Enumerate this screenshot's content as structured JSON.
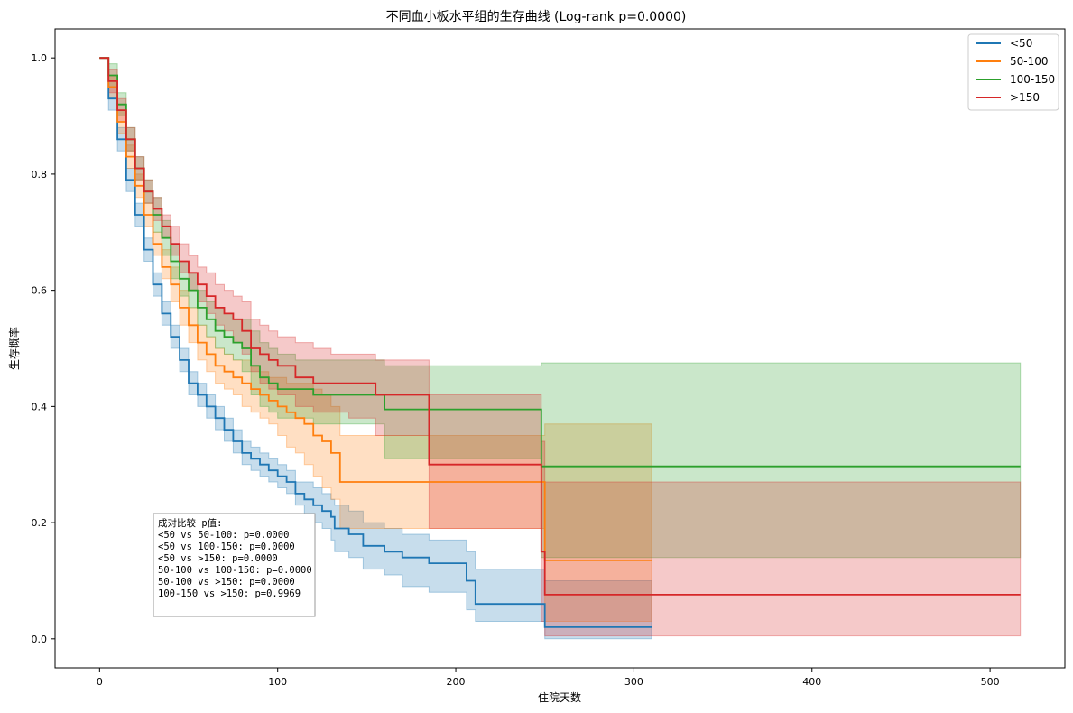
{
  "chart_data": {
    "type": "line",
    "title": "不同血小板水平组的生存曲线 (Log-rank p=0.0000)",
    "xlabel": "住院天数",
    "ylabel": "生存概率",
    "xlim": [
      -25,
      542
    ],
    "ylim": [
      -0.05,
      1.05
    ],
    "xticks": [
      0,
      100,
      200,
      300,
      400,
      500
    ],
    "yticks": [
      0.0,
      0.2,
      0.4,
      0.6,
      0.8,
      1.0
    ],
    "xtick_labels": [
      "0",
      "100",
      "200",
      "300",
      "400",
      "500"
    ],
    "ytick_labels": [
      "0.0",
      "0.2",
      "0.4",
      "0.6",
      "0.8",
      "1.0"
    ],
    "grid": false,
    "legend_position": "top-right",
    "step": true,
    "series": [
      {
        "name": "<50",
        "color": "#1f77b4",
        "x": [
          0,
          5,
          10,
          15,
          20,
          25,
          30,
          35,
          40,
          45,
          50,
          55,
          60,
          65,
          70,
          75,
          80,
          85,
          90,
          95,
          100,
          105,
          110,
          115,
          120,
          125,
          130,
          132,
          140,
          148,
          160,
          170,
          185,
          206,
          211,
          248,
          250,
          310
        ],
        "y": [
          1.0,
          0.93,
          0.86,
          0.79,
          0.73,
          0.67,
          0.61,
          0.56,
          0.52,
          0.48,
          0.44,
          0.42,
          0.4,
          0.38,
          0.36,
          0.34,
          0.32,
          0.31,
          0.3,
          0.29,
          0.28,
          0.27,
          0.25,
          0.24,
          0.23,
          0.22,
          0.21,
          0.19,
          0.18,
          0.16,
          0.15,
          0.14,
          0.13,
          0.1,
          0.06,
          0.06,
          0.02,
          0.02
        ],
        "ci_lower": [
          1.0,
          0.91,
          0.84,
          0.77,
          0.71,
          0.65,
          0.59,
          0.54,
          0.5,
          0.46,
          0.42,
          0.4,
          0.38,
          0.36,
          0.34,
          0.32,
          0.3,
          0.29,
          0.28,
          0.27,
          0.26,
          0.25,
          0.23,
          0.21,
          0.2,
          0.19,
          0.17,
          0.15,
          0.14,
          0.12,
          0.11,
          0.09,
          0.08,
          0.05,
          0.03,
          0.03,
          0.0,
          0.0
        ],
        "ci_upper": [
          1.0,
          0.95,
          0.88,
          0.81,
          0.75,
          0.69,
          0.63,
          0.58,
          0.54,
          0.5,
          0.46,
          0.44,
          0.42,
          0.4,
          0.38,
          0.36,
          0.34,
          0.33,
          0.32,
          0.31,
          0.3,
          0.29,
          0.27,
          0.27,
          0.26,
          0.25,
          0.24,
          0.23,
          0.22,
          0.2,
          0.19,
          0.18,
          0.17,
          0.15,
          0.12,
          0.12,
          0.1,
          0.1
        ]
      },
      {
        "name": "50-100",
        "color": "#ff7f0e",
        "x": [
          0,
          5,
          10,
          15,
          20,
          25,
          30,
          35,
          40,
          45,
          50,
          55,
          60,
          65,
          70,
          75,
          80,
          85,
          90,
          95,
          100,
          105,
          110,
          115,
          120,
          125,
          130,
          135,
          185,
          248,
          250,
          310
        ],
        "y": [
          1.0,
          0.95,
          0.89,
          0.83,
          0.78,
          0.73,
          0.68,
          0.64,
          0.61,
          0.57,
          0.54,
          0.51,
          0.49,
          0.47,
          0.46,
          0.45,
          0.44,
          0.43,
          0.42,
          0.41,
          0.4,
          0.39,
          0.38,
          0.37,
          0.35,
          0.34,
          0.32,
          0.27,
          0.27,
          0.27,
          0.135,
          0.135
        ],
        "ci_lower": [
          1.0,
          0.93,
          0.87,
          0.81,
          0.76,
          0.71,
          0.66,
          0.62,
          0.58,
          0.54,
          0.51,
          0.48,
          0.46,
          0.44,
          0.43,
          0.42,
          0.4,
          0.39,
          0.38,
          0.37,
          0.35,
          0.33,
          0.32,
          0.3,
          0.28,
          0.26,
          0.24,
          0.19,
          0.19,
          0.19,
          0.03,
          0.03
        ],
        "ci_upper": [
          1.0,
          0.97,
          0.91,
          0.85,
          0.8,
          0.75,
          0.7,
          0.67,
          0.64,
          0.6,
          0.57,
          0.54,
          0.52,
          0.5,
          0.49,
          0.48,
          0.48,
          0.47,
          0.46,
          0.45,
          0.45,
          0.44,
          0.44,
          0.44,
          0.43,
          0.42,
          0.4,
          0.35,
          0.35,
          0.35,
          0.37,
          0.37
        ]
      },
      {
        "name": "100-150",
        "color": "#2ca02c",
        "x": [
          0,
          5,
          10,
          15,
          20,
          25,
          30,
          35,
          40,
          45,
          50,
          55,
          60,
          65,
          70,
          75,
          80,
          85,
          90,
          95,
          100,
          110,
          120,
          130,
          150,
          160,
          240,
          248,
          517
        ],
        "y": [
          1.0,
          0.97,
          0.92,
          0.86,
          0.81,
          0.77,
          0.73,
          0.69,
          0.65,
          0.62,
          0.6,
          0.57,
          0.55,
          0.53,
          0.52,
          0.51,
          0.5,
          0.47,
          0.45,
          0.44,
          0.43,
          0.43,
          0.42,
          0.42,
          0.42,
          0.395,
          0.395,
          0.297,
          0.297
        ],
        "ci_lower": [
          1.0,
          0.95,
          0.9,
          0.84,
          0.79,
          0.75,
          0.7,
          0.66,
          0.62,
          0.59,
          0.57,
          0.54,
          0.52,
          0.5,
          0.49,
          0.48,
          0.46,
          0.42,
          0.4,
          0.39,
          0.38,
          0.38,
          0.37,
          0.37,
          0.37,
          0.31,
          0.31,
          0.14,
          0.14
        ],
        "ci_upper": [
          1.0,
          0.99,
          0.94,
          0.88,
          0.83,
          0.79,
          0.76,
          0.72,
          0.68,
          0.65,
          0.63,
          0.6,
          0.58,
          0.57,
          0.56,
          0.55,
          0.55,
          0.53,
          0.51,
          0.5,
          0.49,
          0.48,
          0.48,
          0.48,
          0.48,
          0.47,
          0.47,
          0.475,
          0.475
        ]
      },
      {
        "name": ">150",
        "color": "#d62728",
        "x": [
          0,
          5,
          10,
          15,
          20,
          25,
          30,
          35,
          40,
          45,
          50,
          55,
          60,
          65,
          70,
          75,
          80,
          85,
          90,
          95,
          100,
          110,
          120,
          130,
          140,
          155,
          185,
          248,
          250,
          517
        ],
        "y": [
          1.0,
          0.96,
          0.91,
          0.86,
          0.81,
          0.77,
          0.74,
          0.71,
          0.68,
          0.65,
          0.63,
          0.61,
          0.59,
          0.57,
          0.56,
          0.55,
          0.53,
          0.5,
          0.49,
          0.48,
          0.47,
          0.45,
          0.44,
          0.44,
          0.44,
          0.42,
          0.3,
          0.15,
          0.076,
          0.076
        ],
        "ci_lower": [
          1.0,
          0.94,
          0.89,
          0.84,
          0.79,
          0.75,
          0.72,
          0.69,
          0.66,
          0.63,
          0.6,
          0.58,
          0.56,
          0.54,
          0.53,
          0.51,
          0.49,
          0.46,
          0.44,
          0.43,
          0.42,
          0.4,
          0.39,
          0.39,
          0.38,
          0.35,
          0.19,
          0.03,
          0.005,
          0.005
        ],
        "ci_upper": [
          1.0,
          0.98,
          0.93,
          0.88,
          0.83,
          0.79,
          0.76,
          0.73,
          0.71,
          0.68,
          0.66,
          0.64,
          0.63,
          0.61,
          0.6,
          0.59,
          0.58,
          0.55,
          0.54,
          0.53,
          0.52,
          0.51,
          0.5,
          0.49,
          0.49,
          0.48,
          0.42,
          0.34,
          0.27,
          0.27
        ]
      }
    ],
    "annotation": {
      "title": "成对比较 p值:",
      "lines": [
        "<50 vs 50-100: p=0.0000",
        "<50 vs 100-150: p=0.0000",
        "<50 vs >150: p=0.0000",
        "50-100 vs 100-150: p=0.0000",
        "50-100 vs >150: p=0.0000",
        "100-150 vs >150: p=0.9969"
      ]
    }
  }
}
